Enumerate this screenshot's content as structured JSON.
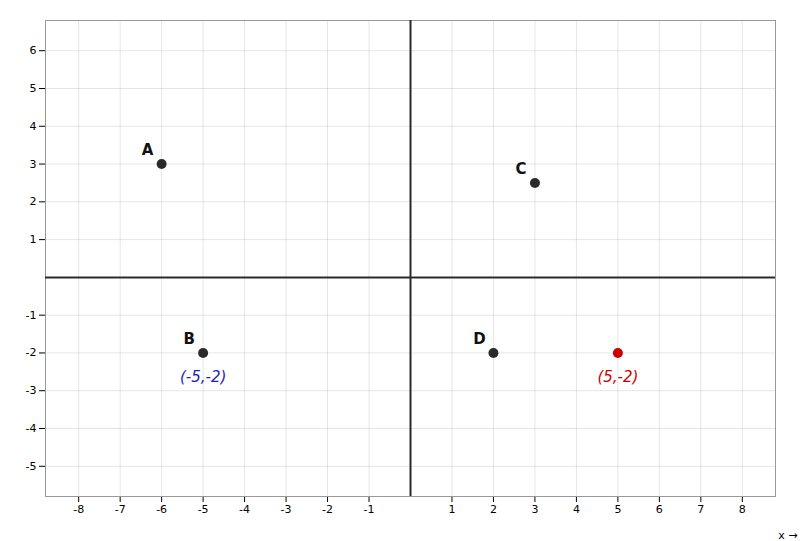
{
  "chart_data": {
    "type": "scatter",
    "x": [
      -6,
      -5,
      3,
      2,
      5
    ],
    "values": [
      3,
      -2,
      2.5,
      -2,
      -2
    ],
    "labels": [
      "A",
      "B",
      "C",
      "D",
      null
    ],
    "colors": [
      "#2a2a2a",
      "#2a2a2a",
      "#2a2a2a",
      "#2a2a2a",
      "#cc0000"
    ],
    "xlabel": "x",
    "xlim": [
      -8.8,
      8.8
    ],
    "ylim": [
      -5.8,
      6.8
    ],
    "xticks": [
      -8,
      -7,
      -6,
      -5,
      -4,
      -3,
      -2,
      -1,
      1,
      2,
      3,
      4,
      5,
      6,
      7,
      8
    ],
    "yticks": [
      -5,
      -4,
      -3,
      -2,
      -1,
      1,
      2,
      3,
      4,
      5,
      6
    ],
    "grid": true,
    "annotations": [
      {
        "text": "(-5,-2)",
        "x": -5,
        "y": -2,
        "color": "#2222bb"
      },
      {
        "text": "(5,-2)",
        "x": 5,
        "y": -2,
        "color": "#cc0000"
      }
    ]
  }
}
